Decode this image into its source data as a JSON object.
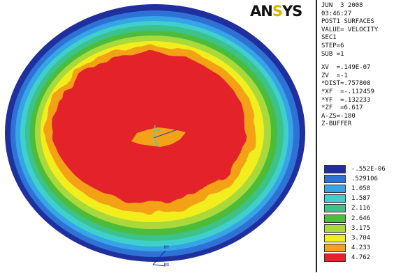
{
  "logo": {
    "prefix": "AN",
    "accent": "S",
    "suffix": "YS"
  },
  "info": {
    "header_lines": [
      "JUN  3 2008",
      "03:46:27",
      "POST1 SURFACES",
      "VALUE= VELOCITY",
      "SEC1",
      "STEP=6",
      "SUB =1"
    ],
    "view_lines": [
      "XV  =.149E-07",
      "ZV  =-1",
      "*DIST=.757808",
      "*XF  =-.112459",
      "*YF  =.132233",
      "*ZF  =6.617",
      "A-ZS=-180",
      "Z-BUFFER"
    ]
  },
  "legend": {
    "items": [
      {
        "label": "-.552E-06",
        "color": "#1f2f9e"
      },
      {
        "label": ".529106",
        "color": "#2f72d6"
      },
      {
        "label": "1.058",
        "color": "#36a4e6"
      },
      {
        "label": "1.587",
        "color": "#3fd0ce"
      },
      {
        "label": "2.116",
        "color": "#3cc28a"
      },
      {
        "label": "2.646",
        "color": "#4cbd3a"
      },
      {
        "label": "3.175",
        "color": "#a9d93a"
      },
      {
        "label": "3.704",
        "color": "#f2ee1e"
      },
      {
        "label": "4.233",
        "color": "#f3a219"
      },
      {
        "label": "4.762",
        "color": "#e4222a"
      }
    ]
  },
  "axis_triad": {
    "y_label": "MY",
    "x_label": "MX"
  }
}
